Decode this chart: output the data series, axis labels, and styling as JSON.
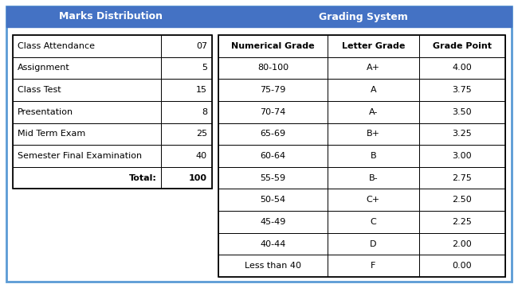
{
  "title_left": "Marks Distribution",
  "title_right": "Grading System",
  "title_bg_color": "#4472C4",
  "title_text_color": "#FFFFFF",
  "marks_rows": [
    [
      "Class Attendance",
      "07"
    ],
    [
      "Assignment",
      "5"
    ],
    [
      "Class Test",
      "15"
    ],
    [
      "Presentation",
      "8"
    ],
    [
      "Mid Term Exam",
      "25"
    ],
    [
      "Semester Final Examination",
      "40"
    ]
  ],
  "marks_total_label": "Total:",
  "marks_total_value": "100",
  "grading_headers": [
    "Numerical Grade",
    "Letter Grade",
    "Grade Point"
  ],
  "grading_rows": [
    [
      "80-100",
      "A+",
      "4.00"
    ],
    [
      "75-79",
      "A",
      "3.75"
    ],
    [
      "70-74",
      "A-",
      "3.50"
    ],
    [
      "65-69",
      "B+",
      "3.25"
    ],
    [
      "60-64",
      "B",
      "3.00"
    ],
    [
      "55-59",
      "B-",
      "2.75"
    ],
    [
      "50-54",
      "C+",
      "2.50"
    ],
    [
      "45-49",
      "C",
      "2.25"
    ],
    [
      "40-44",
      "D",
      "2.00"
    ],
    [
      "Less than 40",
      "F",
      "0.00"
    ]
  ],
  "table_border_color": "#000000",
  "fig_bg_color": "#FFFFFF",
  "outer_border_color": "#5B9BD5",
  "title_fontsize": 9,
  "cell_fontsize": 8
}
